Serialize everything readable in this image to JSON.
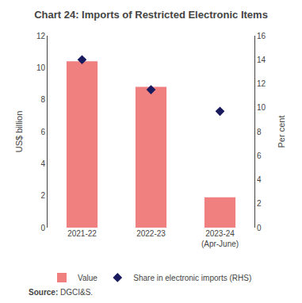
{
  "chart_data": {
    "type": "bar",
    "title": "Chart 24: Imports of Restricted Electronic Items",
    "categories": [
      "2021-22",
      "2022-23",
      "2023-24\n(Apr-June)"
    ],
    "series": [
      {
        "name": "Value",
        "type": "bar",
        "color": "#F08080",
        "values": [
          10.4,
          8.8,
          1.9
        ]
      },
      {
        "name": "Share in electronic imports (RHS)",
        "type": "scatter",
        "marker": "diamond",
        "color": "#1a1a5e",
        "axis": "y2",
        "values": [
          14.0,
          11.5,
          9.7
        ]
      }
    ],
    "ylabel": "US$ billion",
    "y2label": "Per cent",
    "ylim": [
      0,
      12.0
    ],
    "yticks": [
      0,
      2,
      4,
      6,
      8,
      10,
      12
    ],
    "y2lim": [
      0,
      16.0
    ],
    "y2ticks": [
      0,
      2,
      4,
      6,
      8,
      10,
      12,
      14,
      16
    ],
    "grid": false,
    "legend": "bottom",
    "annotations": [
      "Source: DGCI&S."
    ]
  }
}
